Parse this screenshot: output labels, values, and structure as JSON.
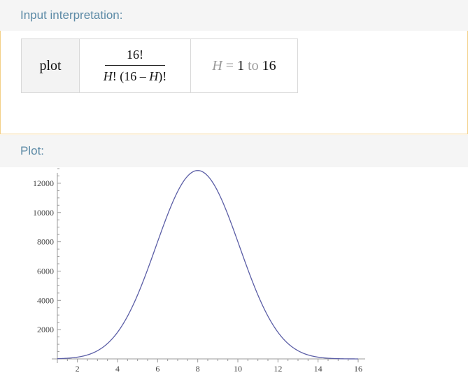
{
  "input_pod": {
    "title": "Input interpretation:",
    "command": "plot",
    "fraction": {
      "numerator": "16!",
      "den_var1": "H",
      "den_mid": "! (16 – ",
      "den_var2": "H",
      "den_end": ")!"
    },
    "range": {
      "variable": "H",
      "equals": "=",
      "from": "1",
      "to_word": "to",
      "to": "16"
    }
  },
  "plot_pod": {
    "title": "Plot:"
  },
  "colors": {
    "curve": "#5b5ea6",
    "axis": "#999999",
    "header_text": "#5c8aa6",
    "pod_border": "#f3cf86"
  },
  "chart_data": {
    "type": "line",
    "function": "16!/(H!(16-H)!)",
    "x": [
      1,
      2,
      3,
      4,
      5,
      6,
      7,
      8,
      9,
      10,
      11,
      12,
      13,
      14,
      15,
      16
    ],
    "y": [
      16,
      120,
      560,
      1820,
      4368,
      8008,
      11440,
      12870,
      11440,
      8008,
      4368,
      1820,
      560,
      120,
      16,
      1
    ],
    "xlim": [
      1,
      16
    ],
    "ylim": [
      0,
      13000
    ],
    "x_ticks": [
      2,
      4,
      6,
      8,
      10,
      12,
      14,
      16
    ],
    "y_ticks": [
      2000,
      4000,
      6000,
      8000,
      10000,
      12000
    ],
    "grid": false
  }
}
